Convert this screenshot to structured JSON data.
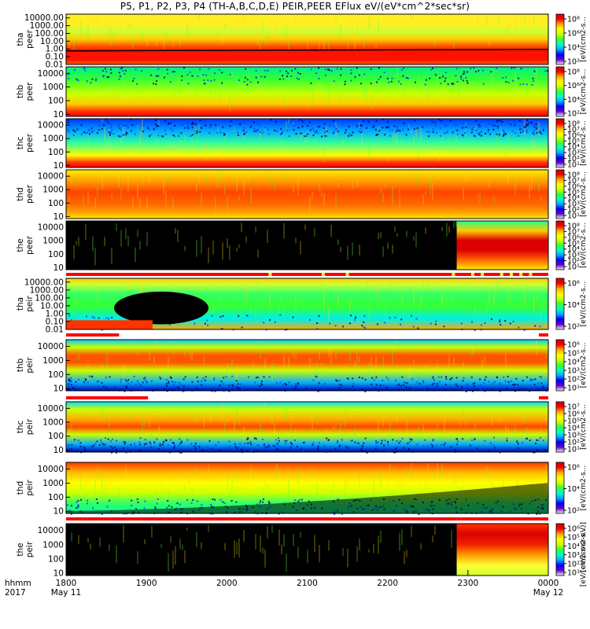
{
  "title": "P5, P1, P2, P3, P4 (TH-A,B,C,D,E) PEIR,PEER EFlux eV/(eV*cm^2*sec*sr)",
  "colorbar_unit": "[eV/(cm2-s-sr-eV)]",
  "colorbar_unit_short": "[eV/(cm2-s...",
  "time_axis": {
    "ticks": [
      "1800",
      "1900",
      "2000",
      "2100",
      "2200",
      "2300",
      "0000"
    ],
    "row_label": "hhmm",
    "year": "2017",
    "start_date": "May 11",
    "end_date": "May 12"
  },
  "colormap_stops": [
    "#f0f0f0",
    "#6600cc",
    "#0000ff",
    "#00aaff",
    "#00ffcc",
    "#33ff33",
    "#ccff00",
    "#ffff00",
    "#ffaa00",
    "#ff0000",
    "#cc0000"
  ],
  "chart_data": {
    "type": "heatmap",
    "x_range": [
      "1800",
      "0000"
    ],
    "panels": [
      {
        "probe": "tha",
        "species": "peer",
        "label_top": "tha",
        "label_bottom": "peer",
        "yticks": [
          "10000.00",
          "1000.00",
          "100.00",
          "10.00",
          "1.00",
          "0.10",
          "0.01"
        ],
        "ylog_range": [
          0.01,
          30000
        ],
        "cbar_ticks": [
          "10⁸",
          "10⁶",
          "10⁴",
          "10²"
        ],
        "flag_bar": "none"
      },
      {
        "probe": "thb",
        "species": "peer",
        "label_top": "thb",
        "label_bottom": "peer",
        "yticks": [
          "10000",
          "1000",
          "100",
          "10"
        ],
        "ylog_range": [
          7,
          30000
        ],
        "cbar_ticks": [
          "10⁸",
          "10⁶",
          "10⁴",
          "10²"
        ],
        "flag_bar": "none"
      },
      {
        "probe": "thc",
        "species": "peer",
        "label_top": "thc",
        "label_bottom": "peer",
        "yticks": [
          "10000",
          "1000",
          "100",
          "10"
        ],
        "ylog_range": [
          7,
          30000
        ],
        "cbar_ticks": [
          "10⁸",
          "10⁷",
          "10⁶",
          "10⁵",
          "10⁴",
          "10³",
          "10²",
          "10¹"
        ],
        "flag_bar": "none"
      },
      {
        "probe": "thd",
        "species": "peer",
        "label_top": "thd",
        "label_bottom": "peer",
        "yticks": [
          "10000",
          "1000",
          "100",
          "10"
        ],
        "ylog_range": [
          7,
          30000
        ],
        "cbar_ticks": [
          "10⁸",
          "10⁷",
          "10⁶",
          "10⁵",
          "10⁴",
          "10³",
          "10²",
          "10¹"
        ],
        "flag_bar": "none"
      },
      {
        "probe": "the",
        "species": "peer",
        "label_top": "the",
        "label_bottom": "peer",
        "yticks": [
          "10000",
          "1000",
          "100",
          "10"
        ],
        "ylog_range": [
          7,
          30000
        ],
        "cbar_ticks": [
          "10⁸",
          "10⁷",
          "10⁶",
          "10⁵",
          "10⁴",
          "10³",
          "10²",
          "10¹"
        ],
        "flag_bar": "red-yellow"
      },
      {
        "probe": "tha",
        "species": "peir",
        "label_top": "tha",
        "label_bottom": "peir",
        "yticks": [
          "10000.00",
          "1000.00",
          "100.00",
          "10.00",
          "1.00",
          "0.10",
          "0.01"
        ],
        "ylog_range": [
          0.01,
          30000
        ],
        "cbar_ticks": [
          "10⁶",
          "10⁴",
          "10²"
        ],
        "flag_bar": "red-then-white"
      },
      {
        "probe": "thb",
        "species": "peir",
        "label_top": "thb",
        "label_bottom": "peir",
        "yticks": [
          "10000",
          "1000",
          "100",
          "10"
        ],
        "ylog_range": [
          7,
          30000
        ],
        "cbar_ticks": [
          "10⁶",
          "10⁵",
          "10⁴",
          "10³",
          "10²",
          "10¹"
        ],
        "flag_bar": "red-then-white"
      },
      {
        "probe": "thc",
        "species": "peir",
        "label_top": "thc",
        "label_bottom": "peir",
        "yticks": [
          "10000",
          "1000",
          "100",
          "10"
        ],
        "ylog_range": [
          7,
          30000
        ],
        "cbar_ticks": [
          "10⁷",
          "10⁶",
          "10⁵",
          "10⁴",
          "10³",
          "10²",
          "10¹"
        ],
        "flag_bar": "none"
      },
      {
        "probe": "thd",
        "species": "peir",
        "label_top": "thd",
        "label_bottom": "peir",
        "yticks": [
          "10000",
          "1000",
          "100",
          "10"
        ],
        "ylog_range": [
          7,
          30000
        ],
        "cbar_ticks": [
          "10⁶",
          "10⁴",
          "10²"
        ],
        "flag_bar": "red"
      },
      {
        "probe": "the",
        "species": "peir",
        "label_top": "the",
        "label_bottom": "peir",
        "yticks": [
          "10000",
          "1000",
          "100",
          "10"
        ],
        "ylog_range": [
          7,
          30000
        ],
        "cbar_ticks": [
          "10⁶",
          "10⁵",
          "10⁴",
          "10³",
          "10²",
          "10¹"
        ],
        "flag_bar": "none"
      }
    ]
  }
}
